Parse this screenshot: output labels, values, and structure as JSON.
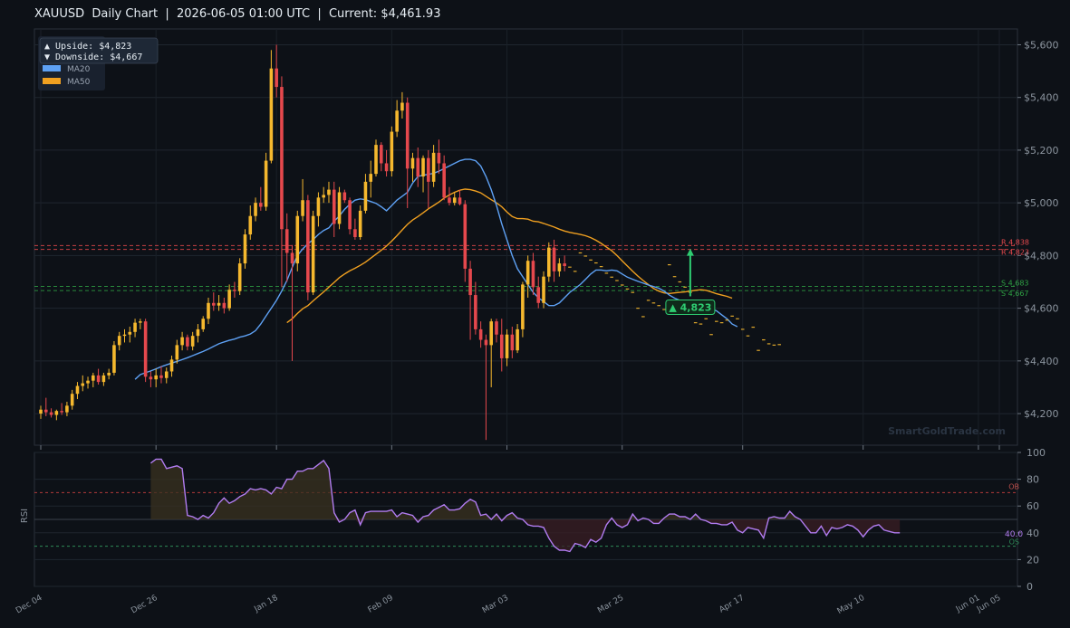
{
  "header": {
    "title": "XAUUSD  Daily Chart  |  2026-06-05 01:00 UTC  |  Current: $4,461.93"
  },
  "legend": {
    "upside_label": "▲ Upside:   $4,823",
    "downside_label": "▼ Downside: $4,667",
    "ma20_label": "MA20",
    "ma50_label": "MA50"
  },
  "watermark": "SmartGoldTrade.com",
  "target_badge": "▲ 4,823",
  "colors": {
    "background": "#0d1117",
    "up": "#f5b82e",
    "down": "#e5484d",
    "ma20": "#5ea1f4",
    "ma50": "#f0a020",
    "resistance": "#e5484d",
    "support": "#2ea043",
    "rsi": "#b17cf0",
    "target": "#2ecc71"
  },
  "chart_data": [
    {
      "type": "candlestick",
      "title": "XAUUSD Daily Chart",
      "current_price": 4461.93,
      "ylim": [
        4080,
        5660
      ],
      "y_ticks": [
        4200,
        4400,
        4600,
        4800,
        5000,
        5200,
        5400,
        5600
      ],
      "y_tick_labels": [
        "$4,200",
        "$4,400",
        "$4,600",
        "$4,800",
        "$5,000",
        "$5,200",
        "$5,400",
        "$5,600"
      ],
      "x_ticks": [
        {
          "date": "2025-12-04",
          "label": "Dec 04"
        },
        {
          "date": "2025-12-26",
          "label": "Dec 26"
        },
        {
          "date": "2026-01-18",
          "label": "Jan 18"
        },
        {
          "date": "2026-02-09",
          "label": "Feb 09"
        },
        {
          "date": "2026-03-03",
          "label": "Mar 03"
        },
        {
          "date": "2026-03-25",
          "label": "Mar 25"
        },
        {
          "date": "2026-04-17",
          "label": "Apr 17"
        },
        {
          "date": "2026-05-10",
          "label": "May 10"
        },
        {
          "date": "2026-06-01",
          "label": "Jun 01"
        },
        {
          "date": "2026-06-05",
          "label": "Jun 05"
        }
      ],
      "start_date": "2025-12-04",
      "candles": [
        [
          4200,
          4230,
          4180,
          4215
        ],
        [
          4215,
          4260,
          4190,
          4205
        ],
        [
          4205,
          4220,
          4185,
          4195
        ],
        [
          4195,
          4215,
          4175,
          4210
        ],
        [
          4210,
          4240,
          4195,
          4205
        ],
        [
          4205,
          4245,
          4190,
          4230
        ],
        [
          4230,
          4290,
          4215,
          4275
        ],
        [
          4275,
          4320,
          4255,
          4305
        ],
        [
          4305,
          4345,
          4285,
          4315
        ],
        [
          4315,
          4340,
          4295,
          4325
        ],
        [
          4325,
          4355,
          4300,
          4345
        ],
        [
          4345,
          4370,
          4310,
          4320
        ],
        [
          4320,
          4355,
          4305,
          4345
        ],
        [
          4345,
          4370,
          4330,
          4355
        ],
        [
          4355,
          4475,
          4345,
          4460
        ],
        [
          4460,
          4510,
          4440,
          4495
        ],
        [
          4495,
          4520,
          4470,
          4500
        ],
        [
          4500,
          4530,
          4470,
          4510
        ],
        [
          4510,
          4560,
          4490,
          4545
        ],
        [
          4545,
          4560,
          4520,
          4550
        ],
        [
          4550,
          4560,
          4320,
          4340
        ],
        [
          4340,
          4360,
          4300,
          4330
        ],
        [
          4330,
          4370,
          4300,
          4345
        ],
        [
          4345,
          4380,
          4315,
          4335
        ],
        [
          4335,
          4375,
          4315,
          4360
        ],
        [
          4360,
          4420,
          4340,
          4405
        ],
        [
          4405,
          4480,
          4390,
          4460
        ],
        [
          4460,
          4510,
          4440,
          4490
        ],
        [
          4490,
          4500,
          4440,
          4455
        ],
        [
          4455,
          4510,
          4440,
          4495
        ],
        [
          4495,
          4540,
          4470,
          4520
        ],
        [
          4520,
          4570,
          4510,
          4560
        ],
        [
          4560,
          4640,
          4540,
          4620
        ],
        [
          4620,
          4660,
          4590,
          4610
        ],
        [
          4610,
          4650,
          4590,
          4620
        ],
        [
          4620,
          4640,
          4580,
          4600
        ],
        [
          4600,
          4690,
          4590,
          4670
        ],
        [
          4670,
          4700,
          4640,
          4665
        ],
        [
          4665,
          4790,
          4650,
          4770
        ],
        [
          4770,
          4900,
          4750,
          4880
        ],
        [
          4880,
          4990,
          4860,
          4950
        ],
        [
          4950,
          5020,
          4930,
          5000
        ],
        [
          5000,
          5060,
          4970,
          4985
        ],
        [
          4985,
          5190,
          4970,
          5160
        ],
        [
          5160,
          5580,
          5150,
          5510
        ],
        [
          5510,
          5600,
          5400,
          5440
        ],
        [
          5440,
          5480,
          4680,
          4900
        ],
        [
          4900,
          4960,
          4700,
          4810
        ],
        [
          4810,
          4840,
          4400,
          4770
        ],
        [
          4770,
          4970,
          4740,
          4950
        ],
        [
          4950,
          5090,
          4930,
          5010
        ],
        [
          5010,
          5030,
          4630,
          4660
        ],
        [
          4660,
          4970,
          4650,
          4950
        ],
        [
          4950,
          5040,
          4910,
          5020
        ],
        [
          5020,
          5060,
          5000,
          5030
        ],
        [
          5030,
          5080,
          5000,
          5050
        ],
        [
          5050,
          5080,
          4870,
          4920
        ],
        [
          4920,
          5060,
          4900,
          5040
        ],
        [
          5040,
          5050,
          5000,
          5010
        ],
        [
          5010,
          5020,
          4880,
          4900
        ],
        [
          4900,
          4940,
          4860,
          4870
        ],
        [
          4870,
          4990,
          4860,
          4970
        ],
        [
          4970,
          5110,
          4960,
          5080
        ],
        [
          5080,
          5160,
          5020,
          5110
        ],
        [
          5110,
          5240,
          5100,
          5220
        ],
        [
          5220,
          5230,
          5120,
          5150
        ],
        [
          5150,
          5200,
          5100,
          5120
        ],
        [
          5120,
          5290,
          5100,
          5270
        ],
        [
          5270,
          5390,
          5250,
          5350
        ],
        [
          5350,
          5420,
          5320,
          5380
        ],
        [
          5380,
          5400,
          4980,
          5130
        ],
        [
          5130,
          5190,
          5080,
          5170
        ],
        [
          5170,
          5210,
          5060,
          5100
        ],
        [
          5100,
          5180,
          5040,
          5170
        ],
        [
          5170,
          5200,
          4980,
          5080
        ],
        [
          5080,
          5220,
          5060,
          5190
        ],
        [
          5190,
          5240,
          5110,
          5150
        ],
        [
          5150,
          5180,
          5010,
          5020
        ],
        [
          5020,
          5060,
          4990,
          5000
        ],
        [
          5000,
          5040,
          4990,
          5020
        ],
        [
          5020,
          5050,
          4990,
          4995
        ],
        [
          4995,
          5010,
          4700,
          4750
        ],
        [
          4750,
          4780,
          4480,
          4650
        ],
        [
          4650,
          4700,
          4500,
          4520
        ],
        [
          4520,
          4550,
          4450,
          4480
        ],
        [
          4480,
          4500,
          4100,
          4460
        ],
        [
          4460,
          4560,
          4300,
          4550
        ],
        [
          4550,
          4560,
          4470,
          4500
        ],
        [
          4500,
          4560,
          4360,
          4410
        ],
        [
          4410,
          4520,
          4380,
          4500
        ],
        [
          4500,
          4530,
          4410,
          4440
        ],
        [
          4440,
          4540,
          4430,
          4520
        ],
        [
          4520,
          4700,
          4490,
          4690
        ],
        [
          4690,
          4800,
          4640,
          4780
        ],
        [
          4780,
          4810,
          4650,
          4680
        ],
        [
          4680,
          4720,
          4600,
          4620
        ],
        [
          4620,
          4740,
          4600,
          4720
        ],
        [
          4720,
          4850,
          4700,
          4830
        ],
        [
          4830,
          4860,
          4700,
          4740
        ],
        [
          4740,
          4790,
          4720,
          4770
        ],
        [
          4770,
          4800,
          4740,
          4760
        ]
      ],
      "forecast": [
        [
          4755,
          4758
        ],
        [
          4740,
          4742
        ],
        [
          4810,
          4812
        ],
        [
          4798,
          4800
        ],
        [
          4783,
          4785
        ],
        [
          4772,
          4774
        ],
        [
          4758,
          4760
        ],
        [
          4733,
          4735
        ],
        [
          4718,
          4720
        ],
        [
          4705,
          4707
        ],
        [
          4688,
          4690
        ],
        [
          4673,
          4675
        ],
        [
          4660,
          4662
        ],
        [
          4600,
          4602
        ],
        [
          4568,
          4570
        ],
        [
          4630,
          4632
        ],
        [
          4620,
          4622
        ],
        [
          4610,
          4612
        ],
        [
          4595,
          4597
        ],
        [
          4765,
          4767
        ],
        [
          4720,
          4722
        ],
        [
          4700,
          4702
        ],
        [
          4680,
          4682
        ],
        [
          4660,
          4662
        ],
        [
          4545,
          4547
        ],
        [
          4540,
          4542
        ],
        [
          4560,
          4562
        ],
        [
          4500,
          4502
        ],
        [
          4550,
          4552
        ],
        [
          4545,
          4547
        ],
        [
          4555,
          4557
        ],
        [
          4570,
          4572
        ],
        [
          4560,
          4562
        ],
        [
          4520,
          4522
        ],
        [
          4495,
          4497
        ],
        [
          4528,
          4530
        ],
        [
          4440,
          4442
        ],
        [
          4480,
          4482
        ],
        [
          4465,
          4467
        ],
        [
          4460,
          4462
        ],
        [
          4462,
          4464
        ]
      ],
      "ma20": [
        4330,
        4348,
        4355,
        4362,
        4370,
        4378,
        4385,
        4392,
        4398,
        4405,
        4412,
        4420,
        4428,
        4436,
        4445,
        4455,
        4465,
        4472,
        4478,
        4483,
        4490,
        4495,
        4502,
        4515,
        4540,
        4570,
        4600,
        4630,
        4665,
        4705,
        4755,
        4800,
        4825,
        4845,
        4860,
        4880,
        4895,
        4905,
        4930,
        4950,
        4975,
        4995,
        5010,
        5015,
        5012,
        5005,
        4998,
        4985,
        4970,
        4990,
        5010,
        5025,
        5040,
        5075,
        5100,
        5105,
        5108,
        5112,
        5120,
        5130,
        5140,
        5150,
        5160,
        5165,
        5165,
        5160,
        5140,
        5100,
        5050,
        4990,
        4920,
        4860,
        4800,
        4750,
        4720,
        4690,
        4660,
        4640,
        4625,
        4610,
        4610,
        4620,
        4640,
        4660,
        4675,
        4690,
        4710,
        4730,
        4745,
        4745,
        4742,
        4745,
        4742,
        4730,
        4718,
        4710,
        4702,
        4695,
        4688,
        4682,
        4676,
        4665,
        4650,
        4638,
        4630,
        4625,
        4621,
        4615,
        4610,
        4605,
        4598,
        4590,
        4575,
        4560,
        4540,
        4530
      ],
      "ma50": [
        4545,
        4560,
        4580,
        4598,
        4610,
        4628,
        4645,
        4662,
        4680,
        4698,
        4716,
        4730,
        4742,
        4752,
        4763,
        4775,
        4790,
        4805,
        4820,
        4836,
        4855,
        4875,
        4897,
        4918,
        4935,
        4948,
        4962,
        4977,
        4990,
        5003,
        5018,
        5030,
        5040,
        5048,
        5052,
        5050,
        5045,
        5038,
        5025,
        5012,
        5000,
        4985,
        4965,
        4948,
        4940,
        4940,
        4938,
        4930,
        4928,
        4922,
        4915,
        4908,
        4900,
        4893,
        4888,
        4884,
        4880,
        4875,
        4868,
        4858,
        4846,
        4832,
        4818,
        4800,
        4780,
        4760,
        4740,
        4722,
        4705,
        4690,
        4675,
        4665,
        4658,
        4656,
        4658,
        4660,
        4662,
        4665,
        4668,
        4670,
        4668,
        4662,
        4655,
        4650,
        4645,
        4638
      ],
      "resistance": [
        4838,
        4823
      ],
      "resistance_labels": [
        "R 4,838",
        "R 4,823"
      ],
      "support": [
        4683,
        4667
      ],
      "support_labels": [
        "S 4,683",
        "S 4,667"
      ],
      "target": 4823
    },
    {
      "type": "line",
      "ylabel": "RSI",
      "ylim": [
        0,
        100
      ],
      "y_ticks": [
        0,
        20,
        40,
        60,
        80,
        100
      ],
      "overbought": 70,
      "overbought_label": "OB",
      "oversold": 30,
      "oversold_label": "OS",
      "midline": 50,
      "current_label": "40.0",
      "values": [
        92,
        95,
        95,
        88,
        89,
        90,
        88,
        53,
        52,
        50,
        53,
        51,
        55,
        62,
        66,
        62,
        64,
        67,
        69,
        73,
        72,
        73,
        72,
        69,
        74,
        73,
        80,
        80,
        86,
        86,
        88,
        88,
        91,
        94,
        88,
        55,
        48,
        50,
        55,
        57,
        46,
        55,
        56,
        56,
        56,
        56,
        57,
        52,
        55,
        54,
        53,
        48,
        52,
        53,
        57,
        59,
        61,
        57,
        57,
        58,
        62,
        65,
        63,
        53,
        54,
        50,
        54,
        49,
        53,
        55,
        51,
        50,
        46,
        45,
        45,
        44,
        36,
        30,
        27,
        27,
        26,
        32,
        31,
        29,
        35,
        33,
        36,
        46,
        51,
        46,
        44,
        46,
        54,
        49,
        51,
        50,
        47,
        47,
        51,
        54,
        54,
        52,
        52,
        50,
        54,
        50,
        49,
        47,
        47,
        46,
        46,
        48,
        42,
        40,
        44,
        43,
        42,
        36,
        51,
        52,
        51,
        51,
        56,
        52,
        50,
        45,
        40,
        40,
        45,
        38,
        44,
        43,
        44,
        46,
        45,
        42,
        37,
        42,
        45,
        46,
        42,
        41,
        40,
        40
      ]
    }
  ]
}
